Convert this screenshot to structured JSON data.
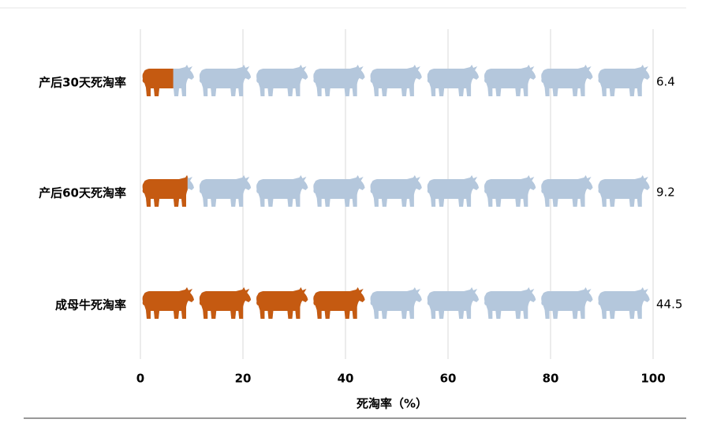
{
  "chart_data": {
    "type": "pictorial_bar",
    "categories": [
      "产后30天死淘率",
      "产后60天死淘率",
      "成母牛死淘率"
    ],
    "values": [
      6.4,
      9.2,
      44.5
    ],
    "color": "#c55a11",
    "background_color": "#b4c7dc",
    "xlabel": "死淘率（%）",
    "xlim": [
      0,
      100
    ],
    "xticks": [
      0,
      20,
      40,
      60,
      80,
      100
    ],
    "grid": true
  }
}
